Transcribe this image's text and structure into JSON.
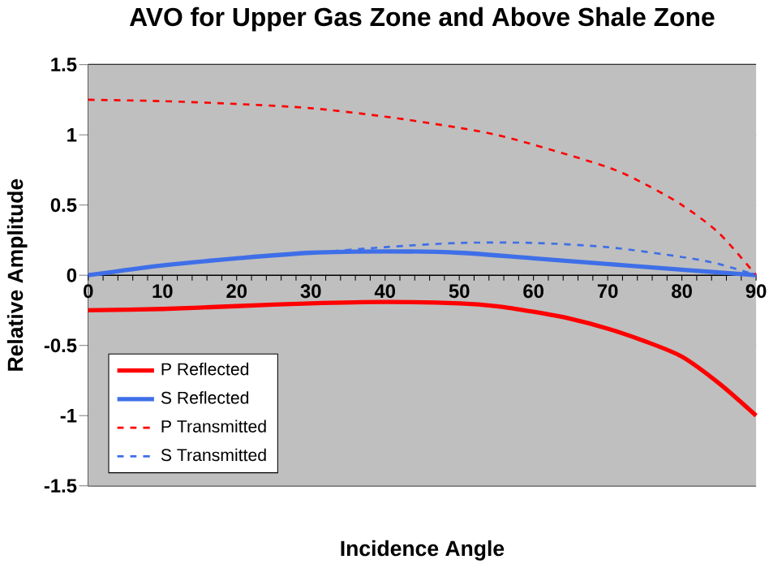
{
  "chart_data": {
    "type": "line",
    "title": "AVO for Upper Gas Zone and Above Shale Zone",
    "xlabel": "Incidence Angle",
    "ylabel": "Relative Amplitude",
    "xlim": [
      0,
      90
    ],
    "ylim": [
      -1.5,
      1.5
    ],
    "xticks": [
      0,
      10,
      20,
      30,
      40,
      50,
      60,
      70,
      80,
      90
    ],
    "yticks": [
      -1.5,
      -1,
      -0.5,
      0,
      0.5,
      1,
      1.5
    ],
    "grid": "y",
    "legend": "bottom left",
    "marker": "none",
    "series": [
      {
        "name": "P Reflected",
        "color": "#ff0000",
        "line_style": "solid",
        "x": [
          0,
          10,
          20,
          30,
          40,
          50,
          55,
          60,
          65,
          70,
          75,
          80,
          85,
          90
        ],
        "values": [
          -0.25,
          -0.24,
          -0.22,
          -0.2,
          -0.19,
          -0.2,
          -0.22,
          -0.26,
          -0.31,
          -0.38,
          -0.47,
          -0.58,
          -0.77,
          -1.0
        ]
      },
      {
        "name": "S Reflected",
        "color": "#3f6fe8",
        "line_style": "solid",
        "x": [
          0,
          10,
          20,
          30,
          40,
          50,
          60,
          70,
          80,
          90
        ],
        "values": [
          0,
          0.07,
          0.12,
          0.16,
          0.17,
          0.16,
          0.12,
          0.08,
          0.04,
          0
        ]
      },
      {
        "name": "P Transmitted",
        "color": "#ff0000",
        "line_style": "dashed",
        "x": [
          0,
          10,
          20,
          30,
          40,
          50,
          55,
          60,
          70,
          75,
          80,
          85,
          90
        ],
        "values": [
          1.25,
          1.24,
          1.22,
          1.19,
          1.13,
          1.05,
          1.0,
          0.93,
          0.77,
          0.65,
          0.5,
          0.3,
          0
        ]
      },
      {
        "name": "S Transmitted",
        "color": "#3f6fe8",
        "line_style": "dashed",
        "x": [
          0,
          10,
          20,
          30,
          40,
          50,
          60,
          70,
          80,
          85,
          90
        ],
        "values": [
          0,
          0.07,
          0.12,
          0.16,
          0.2,
          0.23,
          0.23,
          0.2,
          0.13,
          0.08,
          0
        ]
      }
    ]
  }
}
